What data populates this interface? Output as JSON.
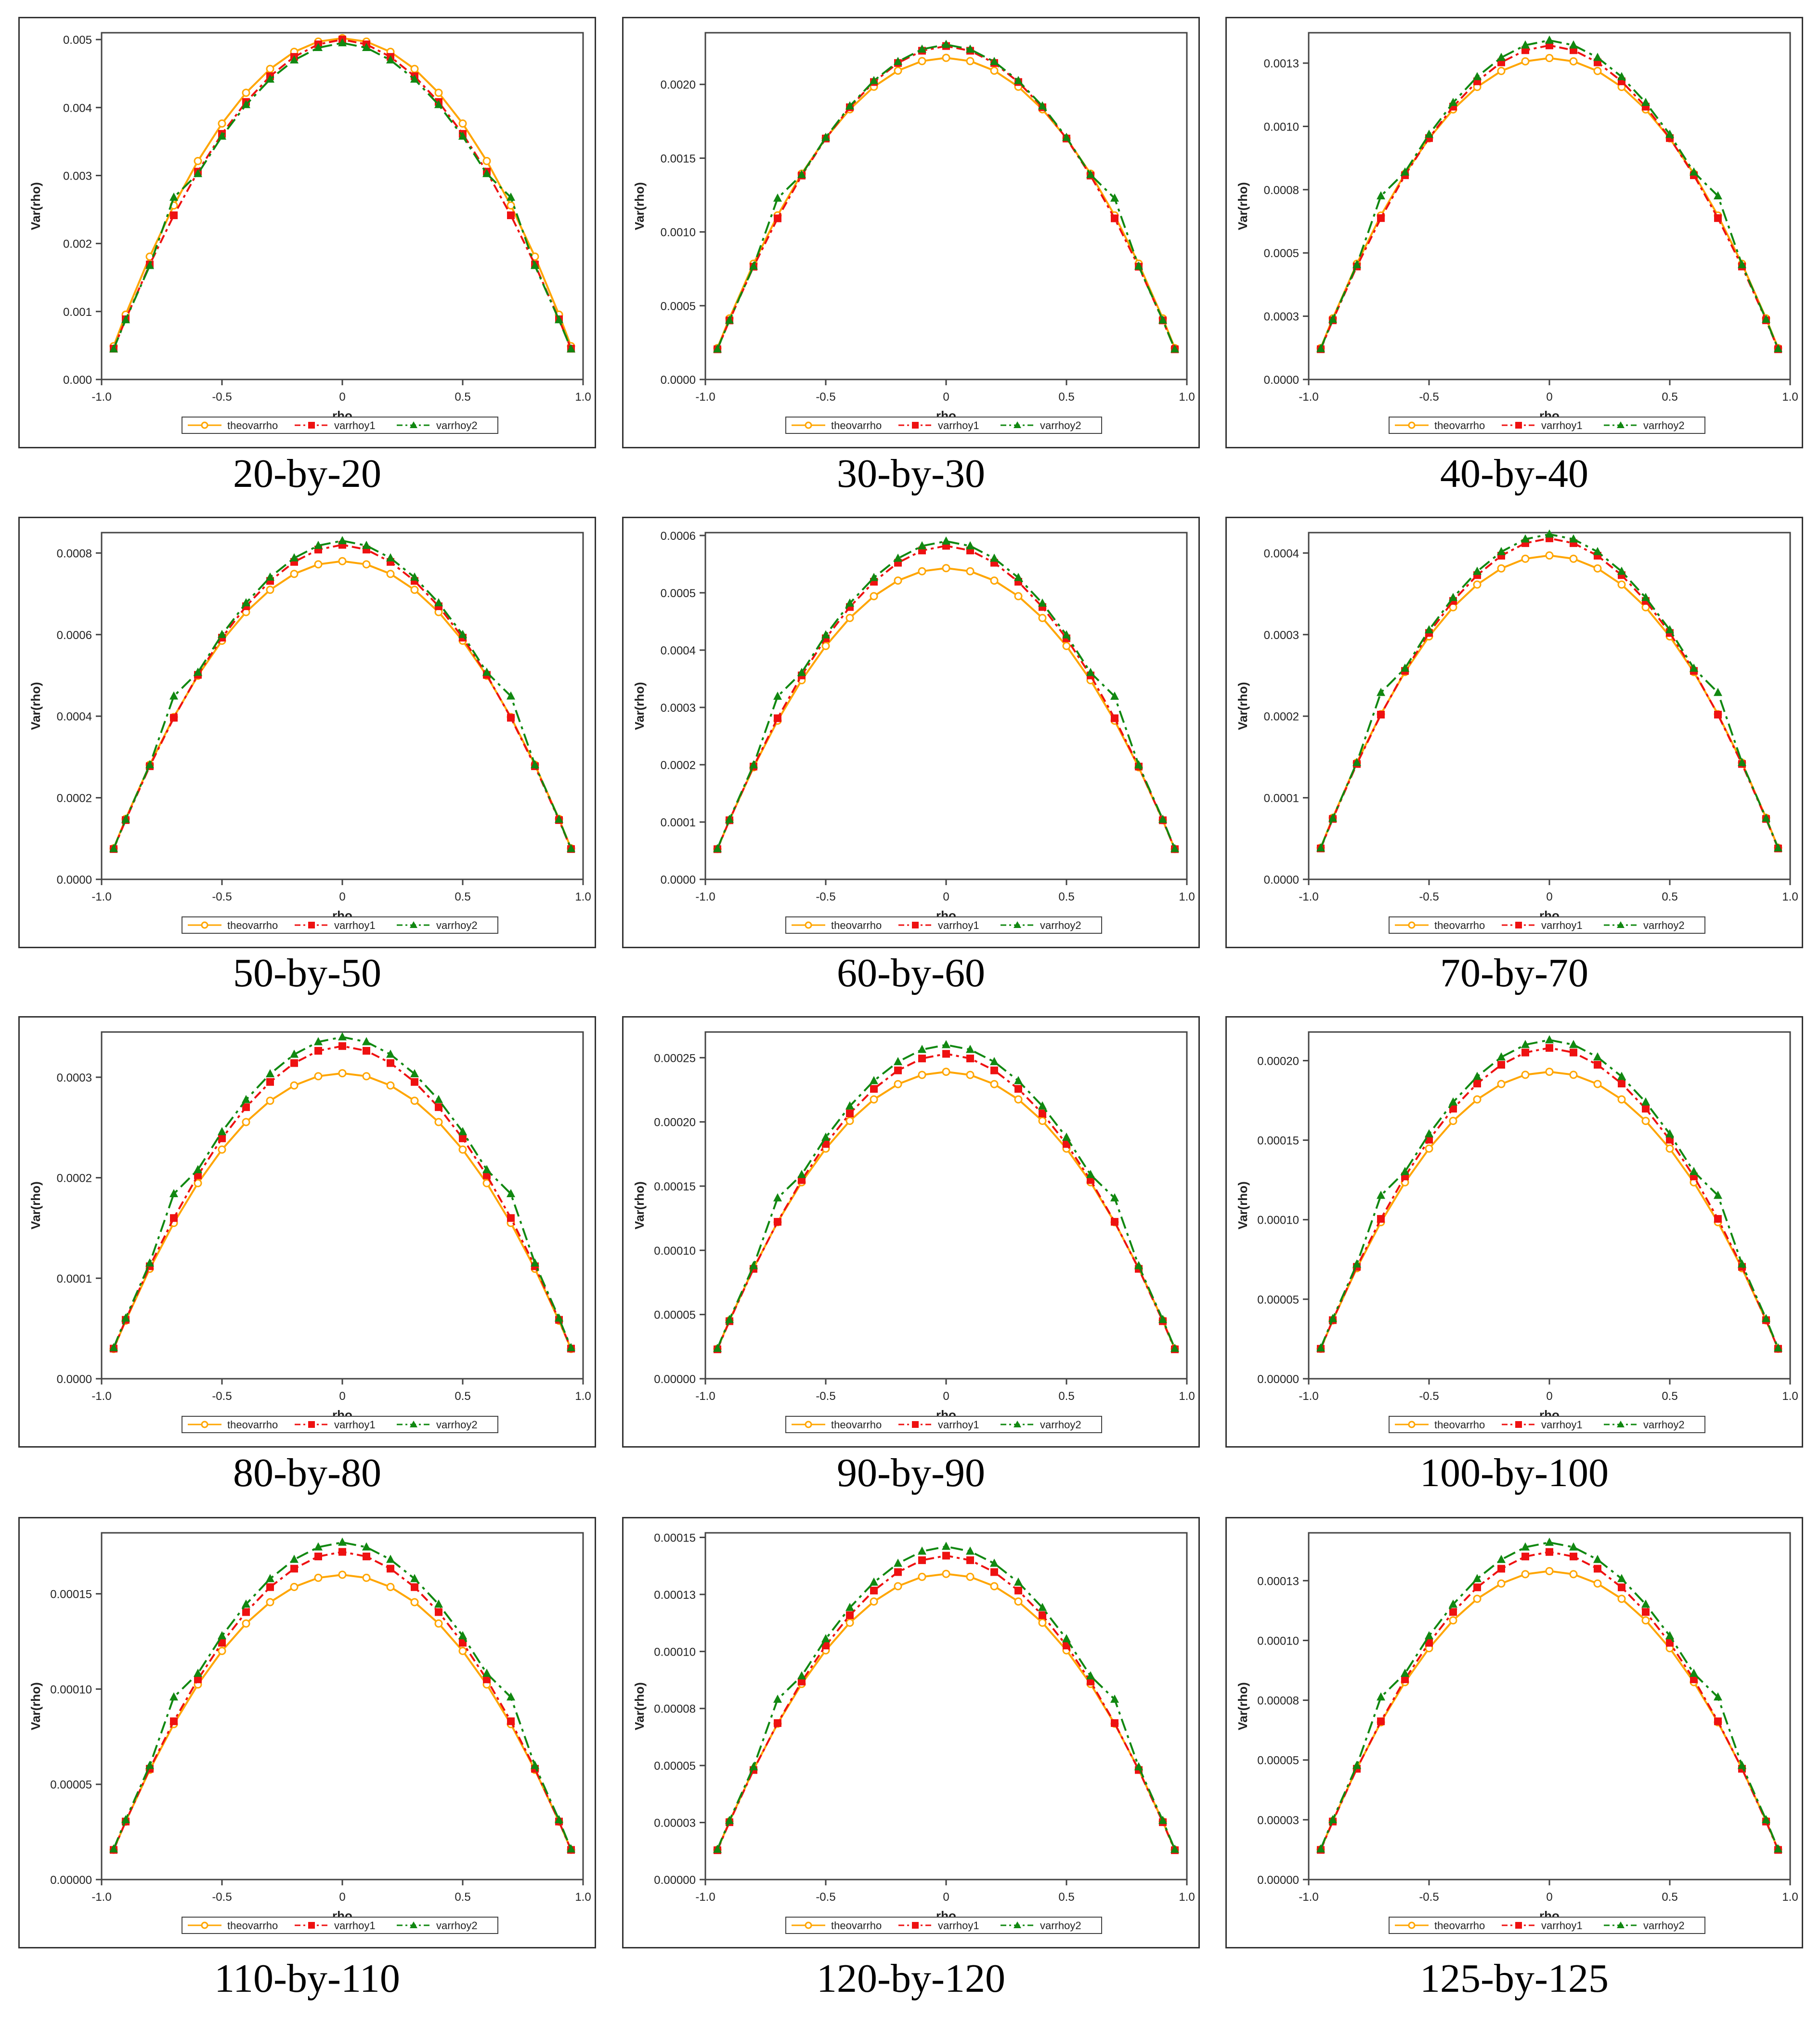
{
  "colors": {
    "theovarrho": "#FFA500",
    "varrhoy1": "#EE1111",
    "varrhoy2": "#118811"
  },
  "chart_data": [
    {
      "type": "line",
      "title": "",
      "caption": "20-by-20",
      "xlabel": "rho",
      "ylabel": "Var(rho)",
      "xlim": [
        -1,
        1
      ],
      "ylim": [
        0,
        0.0051
      ],
      "xticks": [
        -1,
        -0.5,
        0,
        0.5,
        1
      ],
      "xtick_labels": [
        "-1.0",
        "-0.5",
        "0",
        "0.5",
        "1.0"
      ],
      "yticks": [
        0,
        0.001,
        0.002,
        0.003,
        0.004,
        0.005
      ],
      "ytick_labels": [
        "0.000",
        "0.001",
        "0.002",
        "0.003",
        "0.004",
        "0.005"
      ],
      "peaks": {
        "theovarrho": 0.00502,
        "varrhoy1": 0.005,
        "varrhoy2": 0.00495
      },
      "ends": {
        "theovarrho": 0.00025,
        "varrhoy1": 0.0003,
        "varrhoy2": 0.0002
      },
      "legend": [
        "theovarrho",
        "varrhoy1",
        "varrhoy2"
      ],
      "grid": false
    },
    {
      "type": "line",
      "title": "",
      "caption": "30-by-30",
      "xlabel": "rho",
      "ylabel": "Var(rho)",
      "xlim": [
        -1,
        1
      ],
      "ylim": [
        0,
        0.00235
      ],
      "xticks": [
        -1,
        -0.5,
        0,
        0.5,
        1
      ],
      "xtick_labels": [
        "-1.0",
        "-0.5",
        "0",
        "0.5",
        "1.0"
      ],
      "yticks": [
        0,
        0.0005,
        0.001,
        0.0015,
        0.002
      ],
      "ytick_labels": [
        "0.0000",
        "0.0005",
        "0.0010",
        "0.0015",
        "0.0020"
      ],
      "peaks": {
        "theovarrho": 0.00218,
        "varrhoy1": 0.00226,
        "varrhoy2": 0.00227
      },
      "ends": {
        "theovarrho": 0.0001,
        "varrhoy1": 0.00013,
        "varrhoy2": 9e-05
      },
      "legend": [
        "theovarrho",
        "varrhoy1",
        "varrhoy2"
      ],
      "grid": false
    },
    {
      "type": "line",
      "title": "",
      "caption": "40-by-40",
      "xlabel": "rho",
      "ylabel": "Var(rho)",
      "xlim": [
        -1,
        1
      ],
      "ylim": [
        0,
        0.00137
      ],
      "xticks": [
        -1,
        -0.5,
        0,
        0.5,
        1
      ],
      "xtick_labels": [
        "-1.0",
        "-0.5",
        "0",
        "0.5",
        "1.0"
      ],
      "yticks": [
        0,
        0.00025,
        0.0005,
        0.00075,
        0.001,
        0.00125
      ],
      "ytick_labels": [
        "0.0000",
        "0.0003",
        "0.0005",
        "0.0008",
        "0.0010",
        "0.0013"
      ],
      "peaks": {
        "theovarrho": 0.00127,
        "varrhoy1": 0.00132,
        "varrhoy2": 0.00134
      },
      "ends": {
        "theovarrho": 6e-05,
        "varrhoy1": 8e-05,
        "varrhoy2": 5e-05
      },
      "legend": [
        "theovarrho",
        "varrhoy1",
        "varrhoy2"
      ],
      "grid": false
    },
    {
      "type": "line",
      "title": "",
      "caption": "50-by-50",
      "xlabel": "rho",
      "ylabel": "Var(rho)",
      "xlim": [
        -1,
        1
      ],
      "ylim": [
        0,
        0.00085
      ],
      "xticks": [
        -1,
        -0.5,
        0,
        0.5,
        1
      ],
      "xtick_labels": [
        "-1.0",
        "-0.5",
        "0",
        "0.5",
        "1.0"
      ],
      "yticks": [
        0,
        0.0002,
        0.0004,
        0.0006,
        0.0008
      ],
      "ytick_labels": [
        "0.0000",
        "0.0002",
        "0.0004",
        "0.0006",
        "0.0008"
      ],
      "peaks": {
        "theovarrho": 0.00078,
        "varrhoy1": 0.00082,
        "varrhoy2": 0.00083
      },
      "ends": {
        "theovarrho": 4e-05,
        "varrhoy1": 5e-05,
        "varrhoy2": 3.5e-05
      },
      "legend": [
        "theovarrho",
        "varrhoy1",
        "varrhoy2"
      ],
      "grid": false
    },
    {
      "type": "line",
      "title": "",
      "caption": "60-by-60",
      "xlabel": "rho",
      "ylabel": "Var(rho)",
      "xlim": [
        -1,
        1
      ],
      "ylim": [
        0,
        0.000605
      ],
      "xticks": [
        -1,
        -0.5,
        0,
        0.5,
        1
      ],
      "xtick_labels": [
        "-1.0",
        "-0.5",
        "0",
        "0.5",
        "1.0"
      ],
      "yticks": [
        0,
        0.0001,
        0.0002,
        0.0003,
        0.0004,
        0.0005,
        0.0006
      ],
      "ytick_labels": [
        "0.0000",
        "0.0001",
        "0.0002",
        "0.0003",
        "0.0004",
        "0.0005",
        "0.0006"
      ],
      "peaks": {
        "theovarrho": 0.000543,
        "varrhoy1": 0.000582,
        "varrhoy2": 0.00059
      },
      "ends": {
        "theovarrho": 2.8e-05,
        "varrhoy1": 3.5e-05,
        "varrhoy2": 2.2e-05
      },
      "legend": [
        "theovarrho",
        "varrhoy1",
        "varrhoy2"
      ],
      "grid": false
    },
    {
      "type": "line",
      "title": "",
      "caption": "70-by-70",
      "xlabel": "rho",
      "ylabel": "Var(rho)",
      "xlim": [
        -1,
        1
      ],
      "ylim": [
        0,
        0.000425
      ],
      "xticks": [
        -1,
        -0.5,
        0,
        0.5,
        1
      ],
      "xtick_labels": [
        "-1.0",
        "-0.5",
        "0",
        "0.5",
        "1.0"
      ],
      "yticks": [
        0,
        0.0001,
        0.0002,
        0.0003,
        0.0004
      ],
      "ytick_labels": [
        "0.0000",
        "0.0001",
        "0.0002",
        "0.0003",
        "0.0004"
      ],
      "peaks": {
        "theovarrho": 0.000397,
        "varrhoy1": 0.000418,
        "varrhoy2": 0.000423
      },
      "ends": {
        "theovarrho": 2e-05,
        "varrhoy1": 2.6e-05,
        "varrhoy2": 1.6e-05
      },
      "legend": [
        "theovarrho",
        "varrhoy1",
        "varrhoy2"
      ],
      "grid": false
    },
    {
      "type": "line",
      "title": "",
      "caption": "80-by-80",
      "xlabel": "rho",
      "ylabel": "Var(rho)",
      "xlim": [
        -1,
        1
      ],
      "ylim": [
        0,
        0.000345
      ],
      "xticks": [
        -1,
        -0.5,
        0,
        0.5,
        1
      ],
      "xtick_labels": [
        "-1.0",
        "-0.5",
        "0",
        "0.5",
        "1.0"
      ],
      "yticks": [
        0,
        0.0001,
        0.0002,
        0.0003
      ],
      "ytick_labels": [
        "0.0000",
        "0.0001",
        "0.0002",
        "0.0003"
      ],
      "peaks": {
        "theovarrho": 0.000304,
        "varrhoy1": 0.000331,
        "varrhoy2": 0.00034
      },
      "ends": {
        "theovarrho": 1.6e-05,
        "varrhoy1": 2e-05,
        "varrhoy2": 1.3e-05
      },
      "legend": [
        "theovarrho",
        "varrhoy1",
        "varrhoy2"
      ],
      "grid": false
    },
    {
      "type": "line",
      "title": "",
      "caption": "90-by-90",
      "xlabel": "rho",
      "ylabel": "Var(rho)",
      "xlim": [
        -1,
        1
      ],
      "ylim": [
        0,
        0.00027
      ],
      "xticks": [
        -1,
        -0.5,
        0,
        0.5,
        1
      ],
      "xtick_labels": [
        "-1.0",
        "-0.5",
        "0",
        "0.5",
        "1.0"
      ],
      "yticks": [
        0,
        5e-05,
        0.0001,
        0.00015,
        0.0002,
        0.00025
      ],
      "ytick_labels": [
        "0.00000",
        "0.00005",
        "0.00010",
        "0.00015",
        "0.00020",
        "0.00025"
      ],
      "peaks": {
        "theovarrho": 0.000239,
        "varrhoy1": 0.000253,
        "varrhoy2": 0.00026
      },
      "ends": {
        "theovarrho": 1.2e-05,
        "varrhoy1": 1.6e-05,
        "varrhoy2": 1e-05
      },
      "legend": [
        "theovarrho",
        "varrhoy1",
        "varrhoy2"
      ],
      "grid": false
    },
    {
      "type": "line",
      "title": "",
      "caption": "100-by-100",
      "xlabel": "rho",
      "ylabel": "Var(rho)",
      "xlim": [
        -1,
        1
      ],
      "ylim": [
        0,
        0.000218
      ],
      "xticks": [
        -1,
        -0.5,
        0,
        0.5,
        1
      ],
      "xtick_labels": [
        "-1.0",
        "-0.5",
        "0",
        "0.5",
        "1.0"
      ],
      "yticks": [
        0,
        5e-05,
        0.0001,
        0.00015,
        0.0002
      ],
      "ytick_labels": [
        "0.00000",
        "0.00005",
        "0.00010",
        "0.00015",
        "0.00020"
      ],
      "peaks": {
        "theovarrho": 0.000193,
        "varrhoy1": 0.000208,
        "varrhoy2": 0.000213
      },
      "ends": {
        "theovarrho": 1e-05,
        "varrhoy1": 1.3e-05,
        "varrhoy2": 8e-06
      },
      "legend": [
        "theovarrho",
        "varrhoy1",
        "varrhoy2"
      ],
      "grid": false
    },
    {
      "type": "line",
      "title": "",
      "caption": "110-by-110",
      "xlabel": "rho",
      "ylabel": "Var(rho)",
      "xlim": [
        -1,
        1
      ],
      "ylim": [
        0,
        0.000182
      ],
      "xticks": [
        -1,
        -0.5,
        0,
        0.5,
        1
      ],
      "xtick_labels": [
        "-1.0",
        "-0.5",
        "0",
        "0.5",
        "1.0"
      ],
      "yticks": [
        0,
        5e-05,
        0.0001,
        0.00015
      ],
      "ytick_labels": [
        "0.00000",
        "0.00005",
        "0.00010",
        "0.00015"
      ],
      "peaks": {
        "theovarrho": 0.00016,
        "varrhoy1": 0.000172,
        "varrhoy2": 0.000177
      },
      "ends": {
        "theovarrho": 8e-06,
        "varrhoy1": 1.1e-05,
        "varrhoy2": 7e-06
      },
      "legend": [
        "theovarrho",
        "varrhoy1",
        "varrhoy2"
      ],
      "grid": false
    },
    {
      "type": "line",
      "title": "",
      "caption": "120-by-120",
      "xlabel": "rho",
      "ylabel": "Var(rho)",
      "xlim": [
        -1,
        1
      ],
      "ylim": [
        0,
        0.000152
      ],
      "xticks": [
        -1,
        -0.5,
        0,
        0.5,
        1
      ],
      "xtick_labels": [
        "-1.0",
        "-0.5",
        "0",
        "0.5",
        "1.0"
      ],
      "yticks": [
        0,
        2.5e-05,
        5e-05,
        7.5e-05,
        0.0001,
        0.000125,
        0.00015
      ],
      "ytick_labels": [
        "0.00000",
        "0.00003",
        "0.00005",
        "0.00008",
        "0.00010",
        "0.00013",
        "0.00015"
      ],
      "peaks": {
        "theovarrho": 0.000134,
        "varrhoy1": 0.000142,
        "varrhoy2": 0.000146
      },
      "ends": {
        "theovarrho": 7e-06,
        "varrhoy1": 9e-06,
        "varrhoy2": 6e-06
      },
      "legend": [
        "theovarrho",
        "varrhoy1",
        "varrhoy2"
      ],
      "grid": false
    },
    {
      "type": "line",
      "title": "",
      "caption": "125-by-125",
      "xlabel": "rho",
      "ylabel": "Var(rho)",
      "xlim": [
        -1,
        1
      ],
      "ylim": [
        0,
        0.000145
      ],
      "xticks": [
        -1,
        -0.5,
        0,
        0.5,
        1
      ],
      "xtick_labels": [
        "-1.0",
        "-0.5",
        "0",
        "0.5",
        "1.0"
      ],
      "yticks": [
        0,
        2.5e-05,
        5e-05,
        7.5e-05,
        0.0001,
        0.000125
      ],
      "ytick_labels": [
        "0.00000",
        "0.00003",
        "0.00005",
        "0.00008",
        "0.00010",
        "0.00013"
      ],
      "peaks": {
        "theovarrho": 0.000129,
        "varrhoy1": 0.000137,
        "varrhoy2": 0.000141
      },
      "ends": {
        "theovarrho": 7e-06,
        "varrhoy1": 9e-06,
        "varrhoy2": 5e-06
      },
      "legend": [
        "theovarrho",
        "varrhoy1",
        "varrhoy2"
      ],
      "grid": false
    }
  ]
}
